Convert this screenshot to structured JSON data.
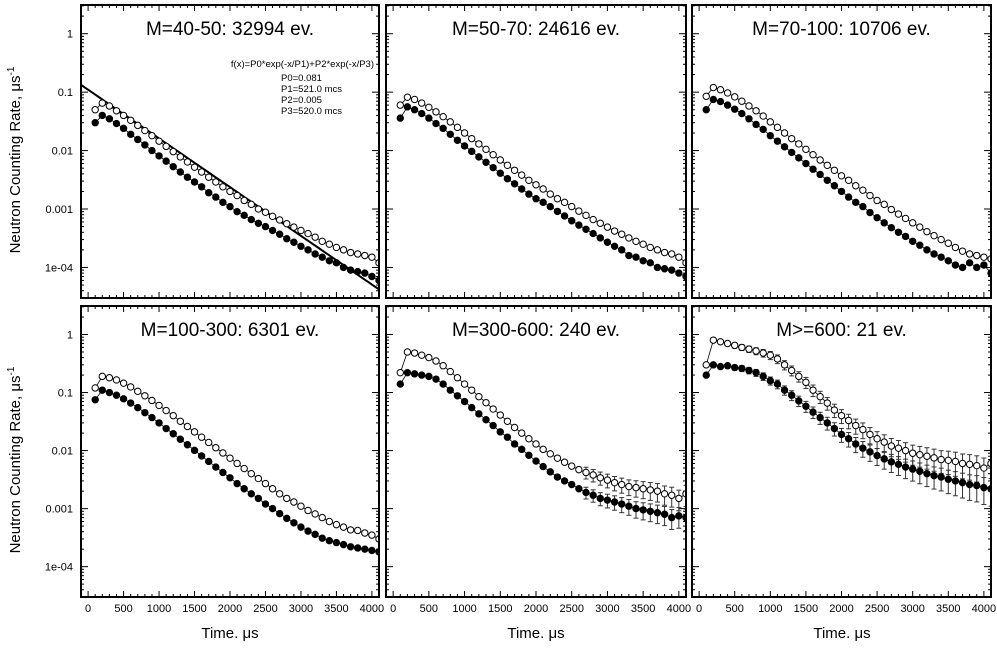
{
  "chart_data": {
    "type": "scatter",
    "ylabel": "Neutron Counting Rate,  μs",
    "ylabel_sup": "-1",
    "xlabel": "Time.  μs",
    "yscale": "log",
    "ylim": [
      3e-05,
      3.1
    ],
    "xlim": [
      -100,
      4100
    ],
    "ytick_values": [
      1,
      0.1,
      0.01,
      0.001,
      0.0001
    ],
    "ytick_labels": [
      "1",
      "0.1",
      "0.01",
      "0.001",
      "1e-04"
    ],
    "xtick_values": [
      0,
      500,
      1000,
      1500,
      2000,
      2500,
      3000,
      3500,
      4000
    ],
    "xtick_labels": [
      "0",
      "500",
      "1000",
      "1500",
      "2000",
      "2500",
      "3000",
      "3500",
      "4000"
    ],
    "x": [
      100,
      200,
      300,
      400,
      500,
      600,
      700,
      800,
      900,
      1000,
      1100,
      1200,
      1300,
      1400,
      1500,
      1600,
      1700,
      1800,
      1900,
      2000,
      2100,
      2200,
      2300,
      2400,
      2500,
      2600,
      2700,
      2800,
      2900,
      3000,
      3100,
      3200,
      3300,
      3400,
      3500,
      3600,
      3700,
      3800,
      3900,
      4000,
      4100
    ],
    "panels": [
      {
        "title": "M=40-50: 32994 ev.",
        "fit": {
          "formula": "f(x)=P0*exp(-x/P1)+P2*exp(-x/P3)",
          "params": [
            "P0=0.081",
            "P1=521.0 mcs",
            "P2=0.005",
            "P3=520.0 mcs"
          ],
          "P0": 0.081,
          "P1": 521.0,
          "P2": 0.005,
          "P3": 520.0
        },
        "series": [
          {
            "name": "open",
            "values": [
              0.05,
              0.065,
              0.058,
              0.048,
              0.04,
              0.033,
              0.027,
              0.022,
              0.018,
              0.0145,
              0.0118,
              0.0096,
              0.0078,
              0.0064,
              0.0052,
              0.0043,
              0.0035,
              0.0029,
              0.0024,
              0.002,
              0.0017,
              0.0014,
              0.0012,
              0.001,
              0.00088,
              0.00075,
              0.00065,
              0.00056,
              0.00049,
              0.00043,
              0.00038,
              0.00033,
              0.00028,
              0.00025,
              0.00022,
              0.0002,
              0.00018,
              0.00017,
              0.00016,
              0.00015,
              0.00012
            ]
          },
          {
            "name": "filled",
            "values": [
              0.03,
              0.04,
              0.035,
              0.029,
              0.024,
              0.019,
              0.0155,
              0.0125,
              0.01,
              0.0081,
              0.0066,
              0.0053,
              0.0043,
              0.0035,
              0.0029,
              0.0024,
              0.0019,
              0.0016,
              0.0013,
              0.0011,
              0.0009,
              0.00078,
              0.00066,
              0.00057,
              0.0005,
              0.00043,
              0.00037,
              0.00031,
              0.00027,
              0.00023,
              0.0002,
              0.00017,
              0.00015,
              0.00013,
              0.00012,
              0.0001,
              9e-05,
              8.5e-05,
              8e-05,
              7e-05,
              6e-05
            ]
          }
        ]
      },
      {
        "title": "M=50-70: 24616 ev.",
        "series": [
          {
            "name": "open",
            "values": [
              0.06,
              0.082,
              0.075,
              0.065,
              0.055,
              0.046,
              0.038,
              0.031,
              0.025,
              0.02,
              0.016,
              0.013,
              0.0105,
              0.0085,
              0.0069,
              0.0056,
              0.0046,
              0.0038,
              0.0031,
              0.0026,
              0.0022,
              0.0018,
              0.0015,
              0.0013,
              0.0011,
              0.00092,
              0.00078,
              0.00066,
              0.00057,
              0.00049,
              0.00042,
              0.00037,
              0.00032,
              0.00028,
              0.00025,
              0.00022,
              0.0002,
              0.00018,
              0.00017,
              0.00015,
              0.00012
            ]
          },
          {
            "name": "filled",
            "values": [
              0.036,
              0.056,
              0.05,
              0.043,
              0.036,
              0.029,
              0.024,
              0.019,
              0.015,
              0.012,
              0.0097,
              0.0078,
              0.0063,
              0.0051,
              0.0041,
              0.0033,
              0.0027,
              0.0022,
              0.0018,
              0.0015,
              0.0013,
              0.0011,
              0.00091,
              0.00076,
              0.00063,
              0.00053,
              0.00045,
              0.00038,
              0.00032,
              0.00027,
              0.00023,
              0.0002,
              0.00016,
              0.00015,
              0.00013,
              0.00012,
              0.0001,
              9.5e-05,
              9e-05,
              8e-05,
              7e-05
            ]
          }
        ]
      },
      {
        "title": "M=70-100: 10706 ev.",
        "series": [
          {
            "name": "open",
            "values": [
              0.085,
              0.12,
              0.11,
              0.097,
              0.083,
              0.07,
              0.058,
              0.048,
              0.039,
              0.031,
              0.025,
              0.02,
              0.016,
              0.013,
              0.0105,
              0.0085,
              0.0069,
              0.0056,
              0.0046,
              0.0037,
              0.0031,
              0.0025,
              0.0021,
              0.0017,
              0.0014,
              0.0012,
              0.00098,
              0.00082,
              0.00069,
              0.00058,
              0.00049,
              0.00041,
              0.00035,
              0.0003,
              0.00026,
              0.00022,
              0.00019,
              0.00017,
              0.00016,
              0.00015,
              0.00014
            ]
          },
          {
            "name": "filled",
            "values": [
              0.05,
              0.075,
              0.069,
              0.06,
              0.051,
              0.043,
              0.035,
              0.028,
              0.023,
              0.018,
              0.0145,
              0.0116,
              0.0093,
              0.0075,
              0.006,
              0.0048,
              0.0039,
              0.0031,
              0.0025,
              0.002,
              0.0016,
              0.0013,
              0.0011,
              0.00087,
              0.00071,
              0.00058,
              0.00048,
              0.0004,
              0.00034,
              0.00028,
              0.00024,
              0.0002,
              0.00017,
              0.00015,
              0.00013,
              0.00011,
              0.0001,
              0.00012,
              0.0001,
              0.00011,
              8e-05
            ]
          }
        ]
      },
      {
        "title": "M=100-300: 6301 ev.",
        "series": [
          {
            "name": "open",
            "values": [
              0.12,
              0.19,
              0.18,
              0.165,
              0.145,
              0.125,
              0.105,
              0.088,
              0.073,
              0.06,
              0.049,
              0.04,
              0.032,
              0.026,
              0.021,
              0.017,
              0.0138,
              0.0112,
              0.0091,
              0.0074,
              0.006,
              0.0049,
              0.004,
              0.0033,
              0.0027,
              0.0022,
              0.0018,
              0.0015,
              0.0013,
              0.0011,
              0.00093,
              0.00081,
              0.0007,
              0.0006,
              0.00053,
              0.00048,
              0.00043,
              0.00042,
              0.00038,
              0.00035,
              0.0003
            ]
          },
          {
            "name": "filled",
            "values": [
              0.075,
              0.11,
              0.1,
              0.09,
              0.078,
              0.066,
              0.055,
              0.045,
              0.037,
              0.03,
              0.024,
              0.0195,
              0.0157,
              0.0126,
              0.0101,
              0.0081,
              0.0065,
              0.0052,
              0.0042,
              0.0034,
              0.0027,
              0.0022,
              0.0018,
              0.0015,
              0.0012,
              0.001,
              0.00082,
              0.00068,
              0.00057,
              0.00048,
              0.00041,
              0.00036,
              0.00031,
              0.00028,
              0.00026,
              0.00024,
              0.00022,
              0.00021,
              0.0002,
              0.00019,
              0.00018
            ]
          }
        ]
      },
      {
        "title": "M=300-600: 240 ev.",
        "series": [
          {
            "name": "open",
            "values": [
              0.22,
              0.5,
              0.48,
              0.44,
              0.4,
              0.35,
              0.29,
              0.23,
              0.18,
              0.14,
              0.11,
              0.085,
              0.067,
              0.052,
              0.041,
              0.032,
              0.025,
              0.02,
              0.016,
              0.013,
              0.0105,
              0.0088,
              0.0074,
              0.0063,
              0.0054,
              0.0047,
              0.0042,
              0.0038,
              0.0034,
              0.0031,
              0.0028,
              0.0026,
              0.0024,
              0.0023,
              0.0022,
              0.0021,
              0.002,
              0.0018,
              0.0017,
              0.0015,
              0.0018
            ]
          },
          {
            "name": "filled",
            "values": [
              0.14,
              0.22,
              0.21,
              0.2,
              0.19,
              0.17,
              0.14,
              0.11,
              0.088,
              0.07,
              0.055,
              0.043,
              0.034,
              0.027,
              0.021,
              0.017,
              0.013,
              0.0105,
              0.0083,
              0.0066,
              0.0053,
              0.0043,
              0.0035,
              0.003,
              0.0026,
              0.0022,
              0.0019,
              0.0017,
              0.0015,
              0.0014,
              0.0013,
              0.0012,
              0.0011,
              0.001,
              0.00095,
              0.0009,
              0.00085,
              0.0008,
              0.0007,
              0.00075,
              0.0007
            ]
          }
        ]
      },
      {
        "title": "M>=600: 21 ev.",
        "series": [
          {
            "name": "open",
            "values": [
              0.3,
              0.8,
              0.75,
              0.7,
              0.65,
              0.6,
              0.56,
              0.52,
              0.48,
              0.44,
              0.38,
              0.3,
              0.24,
              0.19,
              0.15,
              0.11,
              0.085,
              0.066,
              0.05,
              0.04,
              0.033,
              0.027,
              0.023,
              0.019,
              0.016,
              0.014,
              0.012,
              0.011,
              0.01,
              0.009,
              0.0085,
              0.008,
              0.0075,
              0.007,
              0.0068,
              0.0065,
              0.006,
              0.0058,
              0.0055,
              0.005,
              0.006
            ]
          },
          {
            "name": "filled",
            "values": [
              0.2,
              0.3,
              0.28,
              0.29,
              0.27,
              0.26,
              0.24,
              0.22,
              0.19,
              0.16,
              0.14,
              0.11,
              0.09,
              0.072,
              0.058,
              0.046,
              0.037,
              0.03,
              0.024,
              0.019,
              0.016,
              0.013,
              0.011,
              0.0095,
              0.0082,
              0.0072,
              0.0064,
              0.0058,
              0.0052,
              0.0048,
              0.0044,
              0.004,
              0.0037,
              0.0035,
              0.0032,
              0.003,
              0.0028,
              0.0026,
              0.0025,
              0.0023,
              0.0022
            ]
          }
        ]
      }
    ]
  }
}
